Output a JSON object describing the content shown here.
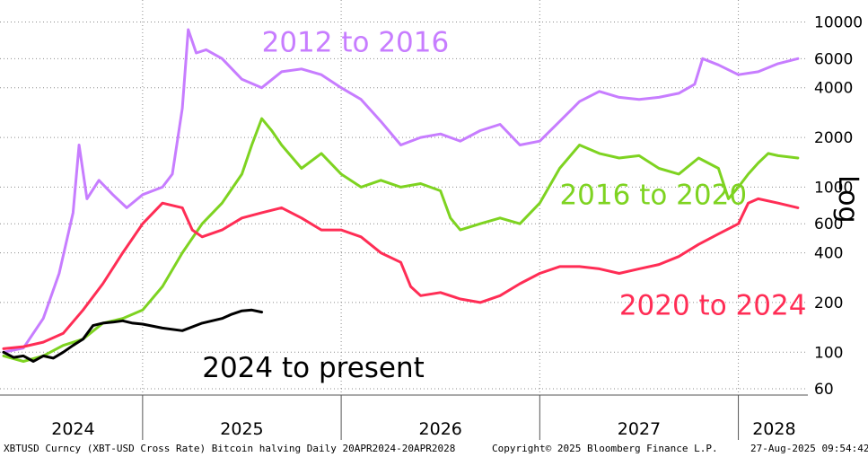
{
  "chart_data": {
    "type": "line",
    "yscale": "log",
    "ylim": [
      55,
      12000
    ],
    "scale_label": "Log",
    "yticks": [
      10000,
      6000,
      4000,
      2000,
      1000,
      600,
      400,
      200,
      100,
      60
    ],
    "ytick_labels": [
      "10000",
      "6000",
      "4000",
      "2000",
      "1000",
      "600",
      "400",
      "200",
      "100",
      "60"
    ],
    "xlim": [
      2024.3,
      2028.35
    ],
    "xticks": [
      {
        "label": "2024",
        "center": 2024.65
      },
      {
        "label": "2025",
        "center": 2025.5
      },
      {
        "label": "2026",
        "center": 2026.5
      },
      {
        "label": "2027",
        "center": 2027.5
      },
      {
        "label": "2028",
        "center": 2028.18
      }
    ],
    "year_dividers": [
      2025.0,
      2026.0,
      2027.0,
      2028.0
    ],
    "series": [
      {
        "name": "2012 to 2016",
        "color": "#c77dff",
        "points": [
          [
            2024.3,
            100
          ],
          [
            2024.4,
            106
          ],
          [
            2024.5,
            160
          ],
          [
            2024.58,
            300
          ],
          [
            2024.65,
            700
          ],
          [
            2024.68,
            1800
          ],
          [
            2024.72,
            850
          ],
          [
            2024.78,
            1100
          ],
          [
            2024.85,
            900
          ],
          [
            2024.92,
            750
          ],
          [
            2025.0,
            900
          ],
          [
            2025.1,
            1000
          ],
          [
            2025.15,
            1200
          ],
          [
            2025.2,
            3000
          ],
          [
            2025.23,
            9000
          ],
          [
            2025.27,
            6500
          ],
          [
            2025.32,
            6800
          ],
          [
            2025.4,
            6000
          ],
          [
            2025.5,
            4500
          ],
          [
            2025.6,
            4000
          ],
          [
            2025.7,
            5000
          ],
          [
            2025.8,
            5200
          ],
          [
            2025.9,
            4800
          ],
          [
            2026.0,
            4000
          ],
          [
            2026.1,
            3400
          ],
          [
            2026.2,
            2500
          ],
          [
            2026.3,
            1800
          ],
          [
            2026.4,
            2000
          ],
          [
            2026.5,
            2100
          ],
          [
            2026.6,
            1900
          ],
          [
            2026.7,
            2200
          ],
          [
            2026.8,
            2400
          ],
          [
            2026.9,
            1800
          ],
          [
            2027.0,
            1900
          ],
          [
            2027.1,
            2500
          ],
          [
            2027.2,
            3300
          ],
          [
            2027.3,
            3800
          ],
          [
            2027.4,
            3500
          ],
          [
            2027.5,
            3400
          ],
          [
            2027.6,
            3500
          ],
          [
            2027.7,
            3700
          ],
          [
            2027.78,
            4200
          ],
          [
            2027.82,
            6000
          ],
          [
            2027.9,
            5500
          ],
          [
            2028.0,
            4800
          ],
          [
            2028.1,
            5000
          ],
          [
            2028.2,
            5600
          ],
          [
            2028.3,
            6000
          ]
        ]
      },
      {
        "name": "2016 to 2020",
        "color": "#7ed321",
        "points": [
          [
            2024.3,
            95
          ],
          [
            2024.4,
            88
          ],
          [
            2024.5,
            95
          ],
          [
            2024.6,
            110
          ],
          [
            2024.7,
            120
          ],
          [
            2024.8,
            150
          ],
          [
            2024.9,
            160
          ],
          [
            2025.0,
            180
          ],
          [
            2025.1,
            250
          ],
          [
            2025.2,
            400
          ],
          [
            2025.3,
            600
          ],
          [
            2025.4,
            800
          ],
          [
            2025.5,
            1200
          ],
          [
            2025.55,
            1800
          ],
          [
            2025.6,
            2600
          ],
          [
            2025.65,
            2200
          ],
          [
            2025.7,
            1800
          ],
          [
            2025.8,
            1300
          ],
          [
            2025.9,
            1600
          ],
          [
            2026.0,
            1200
          ],
          [
            2026.1,
            1000
          ],
          [
            2026.2,
            1100
          ],
          [
            2026.3,
            1000
          ],
          [
            2026.4,
            1050
          ],
          [
            2026.5,
            950
          ],
          [
            2026.55,
            650
          ],
          [
            2026.6,
            550
          ],
          [
            2026.7,
            600
          ],
          [
            2026.8,
            650
          ],
          [
            2026.9,
            600
          ],
          [
            2027.0,
            800
          ],
          [
            2027.1,
            1300
          ],
          [
            2027.2,
            1800
          ],
          [
            2027.3,
            1600
          ],
          [
            2027.4,
            1500
          ],
          [
            2027.5,
            1550
          ],
          [
            2027.6,
            1300
          ],
          [
            2027.7,
            1200
          ],
          [
            2027.8,
            1500
          ],
          [
            2027.9,
            1300
          ],
          [
            2027.95,
            850
          ],
          [
            2028.0,
            1000
          ],
          [
            2028.05,
            1200
          ],
          [
            2028.1,
            1400
          ],
          [
            2028.15,
            1600
          ],
          [
            2028.2,
            1550
          ],
          [
            2028.3,
            1500
          ]
        ]
      },
      {
        "name": "2020 to 2024",
        "color": "#ff2d55",
        "points": [
          [
            2024.3,
            105
          ],
          [
            2024.4,
            108
          ],
          [
            2024.5,
            115
          ],
          [
            2024.6,
            130
          ],
          [
            2024.7,
            180
          ],
          [
            2024.8,
            260
          ],
          [
            2024.9,
            400
          ],
          [
            2025.0,
            600
          ],
          [
            2025.1,
            800
          ],
          [
            2025.2,
            750
          ],
          [
            2025.25,
            550
          ],
          [
            2025.3,
            500
          ],
          [
            2025.4,
            550
          ],
          [
            2025.5,
            650
          ],
          [
            2025.6,
            700
          ],
          [
            2025.7,
            750
          ],
          [
            2025.8,
            650
          ],
          [
            2025.9,
            550
          ],
          [
            2026.0,
            550
          ],
          [
            2026.1,
            500
          ],
          [
            2026.2,
            400
          ],
          [
            2026.3,
            350
          ],
          [
            2026.35,
            250
          ],
          [
            2026.4,
            220
          ],
          [
            2026.5,
            230
          ],
          [
            2026.6,
            210
          ],
          [
            2026.7,
            200
          ],
          [
            2026.8,
            220
          ],
          [
            2026.9,
            260
          ],
          [
            2027.0,
            300
          ],
          [
            2027.1,
            330
          ],
          [
            2027.2,
            330
          ],
          [
            2027.3,
            320
          ],
          [
            2027.4,
            300
          ],
          [
            2027.5,
            320
          ],
          [
            2027.6,
            340
          ],
          [
            2027.7,
            380
          ],
          [
            2027.8,
            450
          ],
          [
            2027.9,
            520
          ],
          [
            2028.0,
            600
          ],
          [
            2028.05,
            800
          ],
          [
            2028.1,
            850
          ],
          [
            2028.2,
            800
          ],
          [
            2028.3,
            750
          ]
        ]
      },
      {
        "name": "2024 to present",
        "color": "#000000",
        "points": [
          [
            2024.3,
            100
          ],
          [
            2024.35,
            93
          ],
          [
            2024.4,
            95
          ],
          [
            2024.45,
            88
          ],
          [
            2024.5,
            95
          ],
          [
            2024.55,
            92
          ],
          [
            2024.6,
            100
          ],
          [
            2024.65,
            110
          ],
          [
            2024.7,
            120
          ],
          [
            2024.75,
            145
          ],
          [
            2024.8,
            150
          ],
          [
            2024.85,
            152
          ],
          [
            2024.9,
            155
          ],
          [
            2024.95,
            150
          ],
          [
            2025.0,
            148
          ],
          [
            2025.1,
            140
          ],
          [
            2025.2,
            135
          ],
          [
            2025.3,
            150
          ],
          [
            2025.4,
            160
          ],
          [
            2025.45,
            170
          ],
          [
            2025.5,
            178
          ],
          [
            2025.55,
            180
          ],
          [
            2025.6,
            175
          ]
        ]
      }
    ],
    "annotations": [
      {
        "text": "2012 to 2016",
        "series": 0
      },
      {
        "text": "2016 to 2020",
        "series": 1
      },
      {
        "text": "2020 to 2024",
        "series": 2
      },
      {
        "text": "2024 to present",
        "series": 3
      }
    ]
  },
  "footer": {
    "left": "XBTUSD Curncy (XBT-USD Cross Rate) Bitcoin halving  Daily 20APR2024-20APR2028",
    "center": "Copyright© 2025 Bloomberg Finance L.P.",
    "right": "27-Aug-2025 09:54:42"
  }
}
